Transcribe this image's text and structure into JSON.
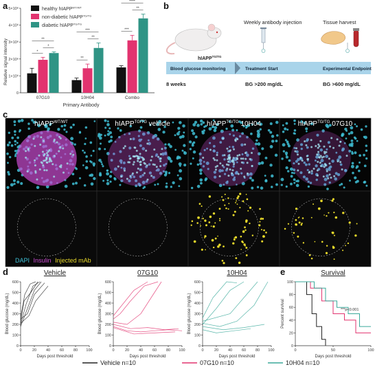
{
  "panel_a": {
    "label": "a",
    "legend": [
      {
        "name": "healthy hIAPP",
        "sup": "WT/WT",
        "color": "#111111"
      },
      {
        "name": "non-diabetic hIAPP",
        "sup": "TG/TG",
        "color": "#e2336f"
      },
      {
        "name": "diabetic hIAPP",
        "sup": "TG/TG",
        "color": "#2f9485"
      }
    ],
    "ylabel": "Relative signal intensity",
    "xlabel": "Primary Antibody",
    "yticks": [
      "0",
      "1×10⁶",
      "2×10⁶",
      "3×10⁶",
      "4×10⁶",
      "5×10⁶"
    ],
    "significance": [
      "**",
      "*",
      "*",
      "***",
      "**",
      "**",
      "****",
      "***",
      "**"
    ]
  },
  "chart_data": [
    {
      "type": "bar",
      "categories": [
        "07G10",
        "10H04",
        "Combo"
      ],
      "series": [
        {
          "name": "healthy hIAPPWT/WT",
          "values": [
            1.15,
            0.75,
            1.5
          ]
        },
        {
          "name": "non-diabetic hIAPPTG/TG",
          "values": [
            1.95,
            1.45,
            3.1
          ]
        },
        {
          "name": "diabetic hIAPPTG/TG",
          "values": [
            2.35,
            2.65,
            4.4
          ]
        }
      ],
      "errors": [
        [
          0.3,
          0.12,
          0.1
        ],
        [
          0.15,
          0.25,
          0.3
        ],
        [
          0.07,
          0.3,
          0.25
        ]
      ],
      "ylabel": "Relative signal intensity",
      "xlabel": "Primary Antibody",
      "ylim": [
        0,
        5
      ]
    },
    {
      "type": "line",
      "title": "Vehicle",
      "xlabel": "Days post threshold",
      "ylabel": "Blood glucose (mg/dL)",
      "xlim": [
        0,
        100
      ],
      "ylim": [
        0,
        600
      ],
      "series": [
        {
          "x": [
            0,
            10,
            20,
            30
          ],
          "y": [
            180,
            350,
            520,
            600
          ]
        },
        {
          "x": [
            0,
            5,
            15,
            25
          ],
          "y": [
            220,
            420,
            500,
            600
          ]
        },
        {
          "x": [
            0,
            10,
            20,
            35
          ],
          "y": [
            250,
            300,
            480,
            590
          ]
        },
        {
          "x": [
            0,
            8,
            18,
            28
          ],
          "y": [
            200,
            390,
            560,
            600
          ]
        },
        {
          "x": [
            0,
            12,
            22,
            40
          ],
          "y": [
            210,
            280,
            420,
            560
          ]
        },
        {
          "x": [
            0,
            6,
            14,
            22
          ],
          "y": [
            260,
            480,
            580,
            600
          ]
        }
      ]
    },
    {
      "type": "line",
      "title": "07G10",
      "xlabel": "Days post threshold",
      "ylabel": "Blood glucose (mg/dL)",
      "xlim": [
        0,
        100
      ],
      "ylim": [
        0,
        600
      ],
      "series": [
        {
          "x": [
            0,
            20,
            40,
            60,
            70
          ],
          "y": [
            220,
            200,
            300,
            500,
            600
          ]
        },
        {
          "x": [
            0,
            15,
            30,
            50
          ],
          "y": [
            280,
            400,
            520,
            600
          ]
        },
        {
          "x": [
            0,
            25,
            50,
            75,
            95
          ],
          "y": [
            200,
            160,
            170,
            150,
            160
          ]
        },
        {
          "x": [
            0,
            20,
            40,
            60,
            80,
            100
          ],
          "y": [
            180,
            140,
            130,
            140,
            150,
            140
          ]
        },
        {
          "x": [
            0,
            10,
            25,
            45,
            65
          ],
          "y": [
            250,
            300,
            420,
            560,
            600
          ]
        },
        {
          "x": [
            0,
            30,
            60,
            90
          ],
          "y": [
            170,
            110,
            120,
            130
          ]
        }
      ]
    },
    {
      "type": "line",
      "title": "10H04",
      "xlabel": "Days post threshold",
      "ylabel": "Blood glucose (mg/dL)",
      "xlim": [
        0,
        100
      ],
      "ylim": [
        0,
        600
      ],
      "series": [
        {
          "x": [
            0,
            20,
            40,
            60
          ],
          "y": [
            200,
            350,
            520,
            600
          ]
        },
        {
          "x": [
            0,
            15,
            35,
            50
          ],
          "y": [
            260,
            450,
            600,
            590
          ]
        },
        {
          "x": [
            0,
            30,
            60,
            90
          ],
          "y": [
            180,
            150,
            170,
            200
          ]
        },
        {
          "x": [
            0,
            25,
            50,
            75,
            95
          ],
          "y": [
            210,
            180,
            230,
            380,
            600
          ]
        },
        {
          "x": [
            0,
            20,
            45,
            70
          ],
          "y": [
            150,
            120,
            140,
            160
          ]
        },
        {
          "x": [
            0,
            40,
            60,
            80
          ],
          "y": [
            230,
            300,
            450,
            600
          ]
        }
      ]
    },
    {
      "type": "line",
      "title": "Survival",
      "xlabel": "Days post threshold",
      "ylabel": "Percent survival",
      "xlim": [
        0,
        100
      ],
      "ylim": [
        0,
        100
      ],
      "annotation": "***p<0.001",
      "series": [
        {
          "name": "Vehicle",
          "x": [
            0,
            10,
            15,
            22,
            28,
            35,
            40
          ],
          "y": [
            100,
            100,
            80,
            50,
            30,
            10,
            0
          ]
        },
        {
          "name": "07G10",
          "x": [
            0,
            20,
            35,
            50,
            65,
            80,
            100
          ],
          "y": [
            100,
            90,
            70,
            50,
            40,
            20,
            20
          ]
        },
        {
          "name": "10H04",
          "x": [
            0,
            25,
            40,
            55,
            70,
            85,
            100
          ],
          "y": [
            100,
            90,
            70,
            60,
            50,
            30,
            30
          ]
        }
      ]
    }
  ],
  "panel_b": {
    "label": "b",
    "mouse_label": "hIAPP",
    "mouse_sup": "TG/TG",
    "injection": "Weekly antibody injection",
    "harvest": "Tissue harvest",
    "timeline": [
      "Blood glucose monitoring",
      "Treatment Start",
      "Experimental Endpoint"
    ],
    "below": [
      "8 weeks",
      "BG >200 mg/dL",
      "BG >600 mg/dL"
    ]
  },
  "panel_c": {
    "label": "c",
    "titles": [
      {
        "main": "hIAPP",
        "sup": "WT/WT",
        "suffix": ""
      },
      {
        "main": "hIAPP",
        "sup": "TG/TG",
        "suffix": " vehicle"
      },
      {
        "main": "hIAPP",
        "sup": "TG/TG",
        "suffix": " 10H04"
      },
      {
        "main": "hIAPP",
        "sup": "TG/TG",
        "suffix": " 07G10"
      }
    ],
    "stain_legend": [
      "DAPI",
      "Insulin",
      "Injected mAb"
    ],
    "stain_colors": [
      "#3fc0d6",
      "#c94bd0",
      "#e6d72a"
    ]
  },
  "panel_d": {
    "label": "d"
  },
  "panel_e": {
    "label": "e"
  },
  "bottom_legend": [
    {
      "text": "Vehicle n=10",
      "color": "#222222"
    },
    {
      "text": "07G10 n=10",
      "color": "#e2336f"
    },
    {
      "text": "10H04 n=10",
      "color": "#3aa99a"
    }
  ]
}
